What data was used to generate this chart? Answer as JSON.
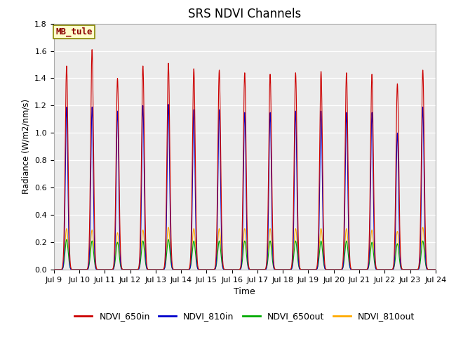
{
  "title": "SRS NDVI Channels",
  "xlabel": "Time",
  "ylabel": "Radiance (W/m2/nm/s)",
  "ylim": [
    0.0,
    1.8
  ],
  "annotation": "MB_tule",
  "channels": [
    "NDVI_650in",
    "NDVI_810in",
    "NDVI_650out",
    "NDVI_810out"
  ],
  "colors": [
    "#cc0000",
    "#0000cc",
    "#00aa00",
    "#ffaa00"
  ],
  "start_day": 9,
  "end_day": 24,
  "peak_650in": [
    1.49,
    1.61,
    1.4,
    1.49,
    1.51,
    1.47,
    1.46,
    1.44,
    1.43,
    1.44,
    1.45,
    1.44,
    1.43,
    1.36,
    1.46
  ],
  "peak_810in": [
    1.19,
    1.19,
    1.16,
    1.2,
    1.21,
    1.17,
    1.17,
    1.15,
    1.15,
    1.16,
    1.16,
    1.15,
    1.15,
    1.0,
    1.19
  ],
  "peak_650out": [
    0.22,
    0.21,
    0.2,
    0.21,
    0.22,
    0.21,
    0.21,
    0.21,
    0.21,
    0.21,
    0.21,
    0.21,
    0.2,
    0.19,
    0.21
  ],
  "peak_810out": [
    0.3,
    0.29,
    0.27,
    0.29,
    0.31,
    0.3,
    0.3,
    0.3,
    0.3,
    0.3,
    0.3,
    0.3,
    0.29,
    0.28,
    0.31
  ],
  "background_color": "#ebebeb",
  "title_fontsize": 12,
  "legend_fontsize": 9,
  "tick_fontsize": 8,
  "n_days": 15
}
